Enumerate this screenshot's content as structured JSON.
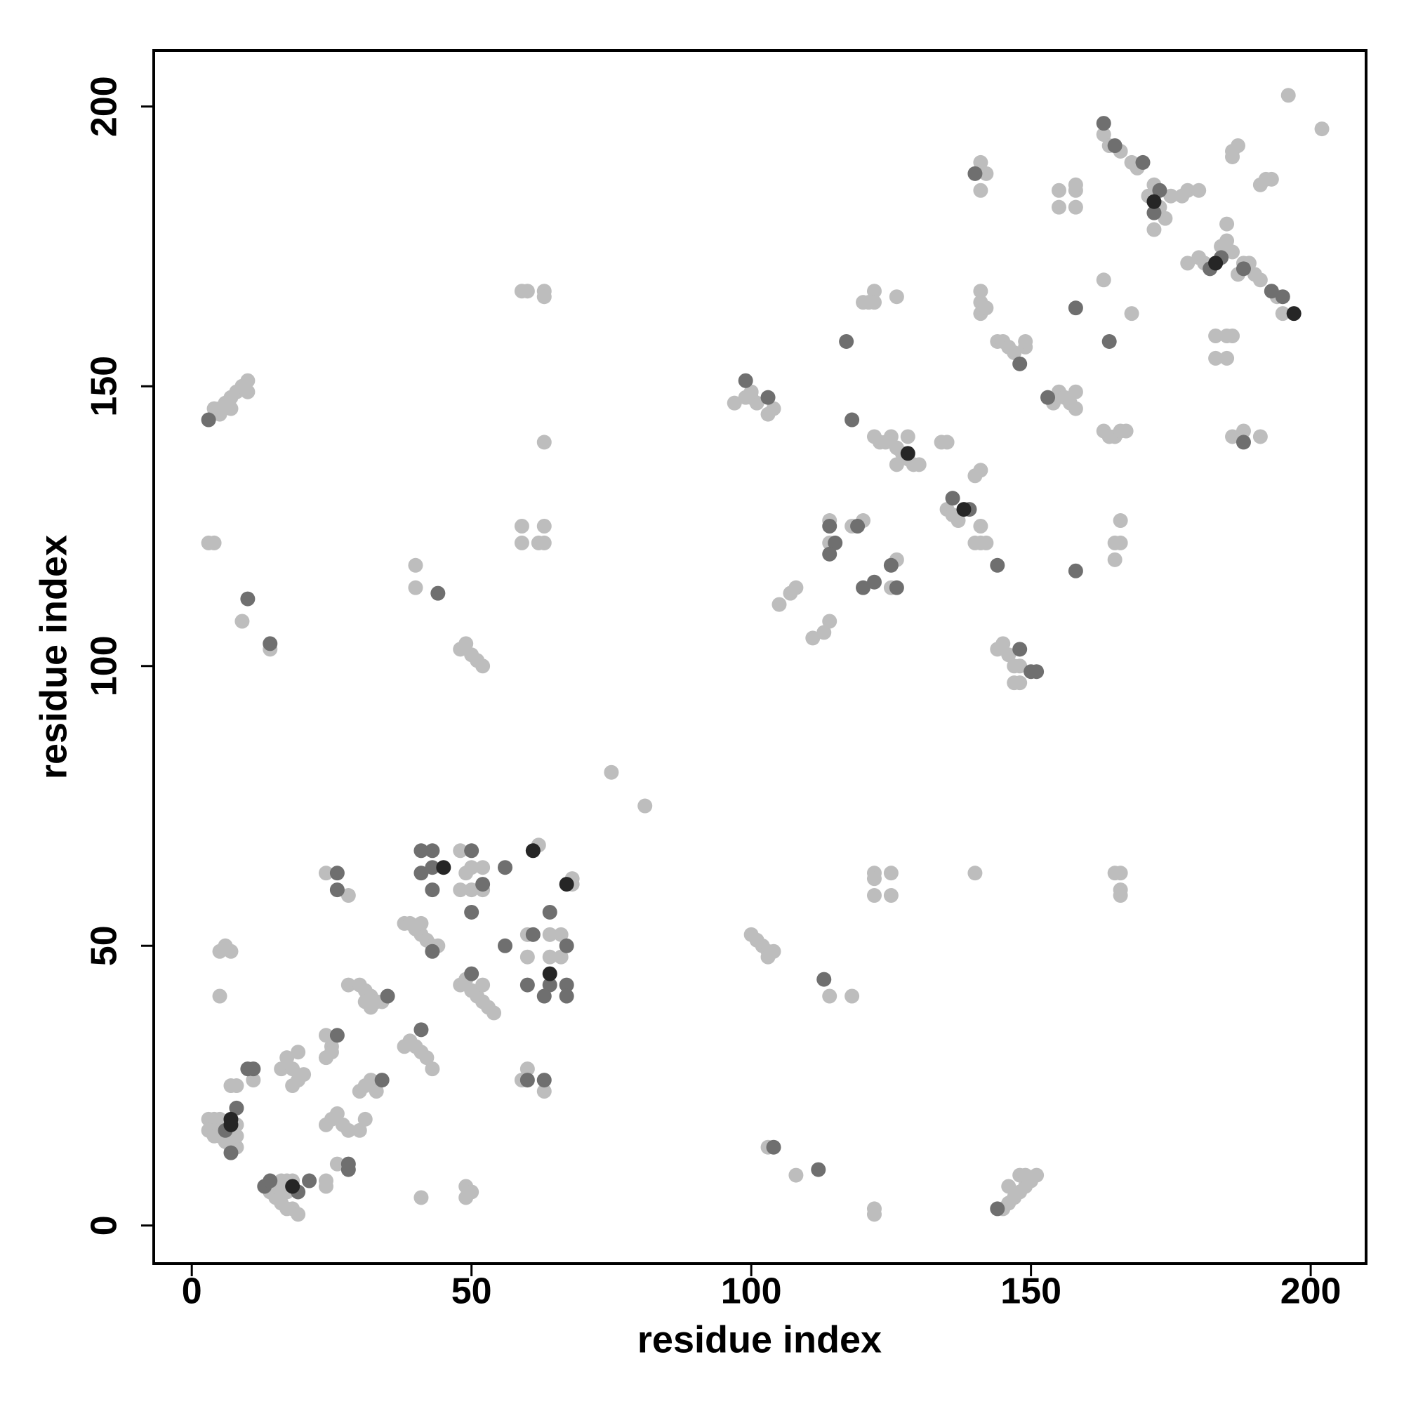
{
  "chart_data": {
    "type": "scatter",
    "x_label": "residue index",
    "y_label": "residue index",
    "xlim": [
      -6.8,
      209.9
    ],
    "ylim": [
      -6.8,
      210
    ],
    "xticks": [
      0,
      50,
      100,
      150,
      200
    ],
    "yticks": [
      0,
      50,
      100,
      150,
      200
    ],
    "grid": false,
    "series": [
      {
        "color": "#bdbdbd",
        "x": [
          4,
          5,
          6,
          7,
          8,
          9,
          10,
          5,
          7,
          10,
          3,
          4,
          9,
          14,
          5,
          6,
          7,
          5,
          3,
          4,
          5,
          4,
          5,
          6,
          7,
          8,
          6,
          8,
          8,
          3,
          4,
          7,
          8,
          11,
          14,
          15,
          16,
          17,
          18,
          19,
          16,
          17,
          18,
          15,
          17,
          16,
          17,
          18,
          19,
          18,
          19,
          20,
          24,
          25,
          24,
          25,
          24,
          25,
          26,
          27,
          28,
          30,
          26,
          24,
          24,
          24,
          28,
          28,
          30,
          31,
          32,
          33,
          31,
          32,
          34,
          30,
          31,
          32,
          33,
          31,
          38,
          39,
          40,
          41,
          42,
          43,
          38,
          39,
          40,
          41,
          42,
          43,
          44,
          41,
          40,
          40,
          41,
          48,
          49,
          50,
          52,
          48,
          50,
          52,
          48,
          49,
          50,
          51,
          52,
          48,
          49,
          50,
          51,
          52,
          53,
          54,
          52,
          49,
          49,
          50,
          59,
          60,
          63,
          63,
          59,
          59,
          62,
          63,
          63,
          63,
          60,
          60,
          60,
          59,
          63,
          62,
          64,
          66,
          66,
          64,
          68,
          68,
          75,
          81,
          97,
          99,
          100,
          101,
          100,
          104,
          103,
          100,
          101,
          102,
          103,
          104,
          103,
          103,
          108,
          105,
          107,
          108,
          111,
          113,
          114,
          114,
          114,
          114,
          118,
          118,
          120,
          120,
          121,
          122,
          122,
          126,
          125,
          126,
          122,
          123,
          124,
          125,
          126,
          127,
          128,
          129,
          130,
          128,
          126,
          122,
          122,
          125,
          122,
          125,
          122,
          122,
          134,
          135,
          135,
          136,
          137,
          141,
          140,
          141,
          142,
          140,
          140,
          141,
          141,
          141,
          142,
          141,
          141,
          141,
          142,
          144,
          145,
          146,
          147,
          149,
          149,
          144,
          145,
          146,
          147,
          148,
          147,
          148,
          145,
          146,
          147,
          148,
          149,
          150,
          148,
          149,
          151,
          146,
          154,
          155,
          156,
          157,
          158,
          158,
          155,
          155,
          158,
          158,
          158,
          163,
          164,
          165,
          166,
          167,
          165,
          166,
          166,
          165,
          165,
          166,
          166,
          166,
          163,
          168,
          163,
          164,
          166,
          168,
          169,
          172,
          171,
          173,
          174,
          172,
          175,
          177,
          178,
          180,
          178,
          180,
          181,
          184,
          185,
          185,
          186,
          187,
          188,
          189,
          183,
          185,
          186,
          183,
          185,
          186,
          188,
          191,
          186,
          187,
          186,
          191,
          192,
          193,
          190,
          191,
          194,
          195,
          196,
          202
        ],
        "values": [
          146,
          146,
          147,
          148,
          149,
          150,
          151,
          145,
          146,
          149,
          122,
          122,
          108,
          103,
          49,
          50,
          49,
          41,
          19,
          19,
          19,
          17,
          16,
          15,
          14,
          14,
          18,
          16,
          18,
          17,
          16,
          25,
          25,
          26,
          6,
          5,
          4,
          3,
          3,
          2,
          8,
          8,
          8,
          7,
          6,
          28,
          30,
          28,
          26,
          25,
          31,
          27,
          30,
          32,
          34,
          31,
          18,
          19,
          20,
          18,
          17,
          17,
          11,
          7,
          8,
          63,
          59,
          43,
          43,
          42,
          41,
          40,
          40,
          39,
          40,
          24,
          25,
          26,
          24,
          19,
          32,
          33,
          32,
          31,
          30,
          28,
          54,
          54,
          53,
          52,
          51,
          50,
          50,
          54,
          118,
          114,
          5,
          67,
          63,
          64,
          64,
          60,
          60,
          60,
          103,
          104,
          102,
          101,
          100,
          43,
          44,
          42,
          41,
          40,
          39,
          38,
          43,
          7,
          5,
          6,
          167,
          167,
          167,
          166,
          125,
          122,
          122,
          122,
          125,
          140,
          52,
          48,
          28,
          26,
          24,
          68,
          48,
          48,
          52,
          52,
          61,
          62,
          81,
          75,
          147,
          148,
          148,
          147,
          149,
          146,
          145,
          52,
          51,
          50,
          49,
          49,
          48,
          14,
          9,
          111,
          113,
          114,
          105,
          106,
          108,
          126,
          122,
          41,
          41,
          125,
          126,
          165,
          165,
          167,
          165,
          166,
          114,
          119,
          141,
          140,
          140,
          141,
          139,
          138,
          137,
          136,
          136,
          141,
          136,
          63,
          62,
          63,
          59,
          59,
          3,
          2,
          140,
          140,
          128,
          127,
          126,
          125,
          122,
          122,
          122,
          63,
          134,
          135,
          190,
          185,
          188,
          167,
          165,
          163,
          164,
          158,
          158,
          157,
          156,
          157,
          158,
          103,
          104,
          102,
          100,
          100,
          97,
          97,
          3,
          4,
          5,
          6,
          7,
          8,
          9,
          9,
          9,
          7,
          147,
          149,
          148,
          147,
          146,
          149,
          182,
          185,
          185,
          186,
          182,
          142,
          141,
          141,
          142,
          142,
          122,
          122,
          126,
          119,
          63,
          63,
          60,
          59,
          169,
          163,
          195,
          193,
          192,
          190,
          189,
          186,
          184,
          182,
          180,
          178,
          184,
          184,
          185,
          185,
          172,
          173,
          172,
          175,
          176,
          179,
          174,
          170,
          172,
          172,
          159,
          159,
          159,
          155,
          155,
          141,
          142,
          141,
          192,
          193,
          191,
          186,
          187,
          187,
          170,
          169,
          166,
          163,
          202,
          196
        ]
      },
      {
        "color": "#6f6f6f",
        "x": [
          3,
          10,
          14,
          8,
          7,
          6,
          10,
          11,
          13,
          14,
          19,
          21,
          26,
          28,
          28,
          26,
          26,
          35,
          34,
          41,
          43,
          41,
          43,
          41,
          43,
          43,
          44,
          50,
          52,
          56,
          50,
          50,
          56,
          60,
          63,
          61,
          60,
          64,
          64,
          63,
          67,
          67,
          67,
          99,
          103,
          104,
          112,
          114,
          115,
          114,
          113,
          117,
          118,
          119,
          120,
          122,
          126,
          125,
          136,
          139,
          140,
          148,
          144,
          148,
          150,
          151,
          144,
          153,
          158,
          158,
          164,
          163,
          165,
          170,
          172,
          173,
          182,
          184,
          188,
          188,
          195,
          193
        ],
        "values": [
          144,
          112,
          104,
          21,
          13,
          17,
          28,
          28,
          7,
          8,
          6,
          8,
          34,
          11,
          10,
          63,
          60,
          41,
          26,
          35,
          49,
          67,
          67,
          63,
          64,
          60,
          113,
          67,
          61,
          64,
          56,
          45,
          50,
          26,
          26,
          52,
          43,
          56,
          43,
          41,
          50,
          43,
          41,
          151,
          148,
          14,
          10,
          125,
          122,
          120,
          44,
          158,
          144,
          125,
          114,
          115,
          114,
          118,
          130,
          128,
          188,
          154,
          118,
          103,
          99,
          99,
          3,
          148,
          117,
          164,
          158,
          197,
          193,
          190,
          181,
          185,
          171,
          173,
          171,
          140,
          166,
          167
        ]
      },
      {
        "color": "#262626",
        "x": [
          7,
          7,
          18,
          45,
          61,
          64,
          67,
          128,
          138,
          172,
          183,
          197
        ],
        "values": [
          19,
          18,
          7,
          64,
          67,
          45,
          61,
          138,
          128,
          183,
          172,
          163
        ]
      }
    ]
  }
}
